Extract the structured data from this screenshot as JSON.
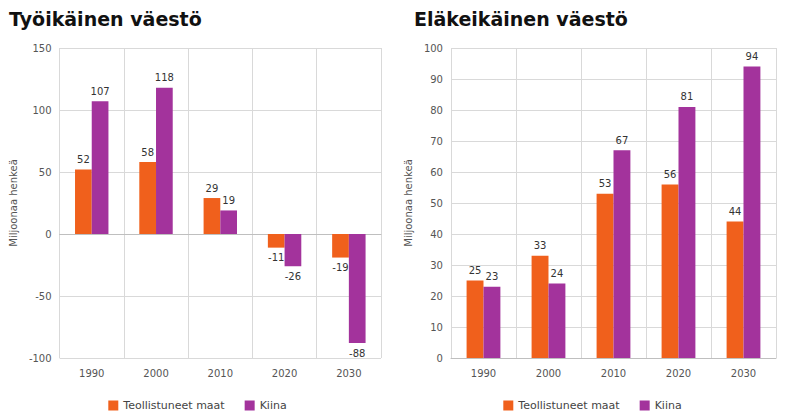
{
  "chart_data": [
    {
      "type": "bar",
      "title": "Työikäinen väestö",
      "y_label": "Miljoonaa henkeä",
      "categories": [
        "1990",
        "2000",
        "2010",
        "2020",
        "2030"
      ],
      "series": [
        {
          "name": "Teollistuneet maat",
          "color": "#f0601c",
          "values": [
            52,
            58,
            29,
            -11,
            -19
          ]
        },
        {
          "name": "Kiina",
          "color": "#a3339c",
          "values": [
            107,
            118,
            19,
            -26,
            -88
          ]
        }
      ],
      "ylim": [
        -100,
        150
      ],
      "yticks": [
        -100,
        -50,
        0,
        50,
        100,
        150
      ],
      "grid": true,
      "data_labels": true,
      "legend": "bottom"
    },
    {
      "type": "bar",
      "title": "Eläkeikäinen väestö",
      "y_label": "Miljoonaa henkeä",
      "categories": [
        "1990",
        "2000",
        "2010",
        "2020",
        "2030"
      ],
      "series": [
        {
          "name": "Teollistuneet maat",
          "color": "#f0601c",
          "values": [
            25,
            33,
            53,
            56,
            44
          ]
        },
        {
          "name": "Kiina",
          "color": "#a3339c",
          "values": [
            23,
            24,
            67,
            81,
            94
          ]
        }
      ],
      "ylim": [
        0,
        100
      ],
      "yticks": [
        0,
        10,
        20,
        30,
        40,
        50,
        60,
        70,
        80,
        90,
        100
      ],
      "grid": true,
      "data_labels": true,
      "legend": "bottom"
    }
  ]
}
